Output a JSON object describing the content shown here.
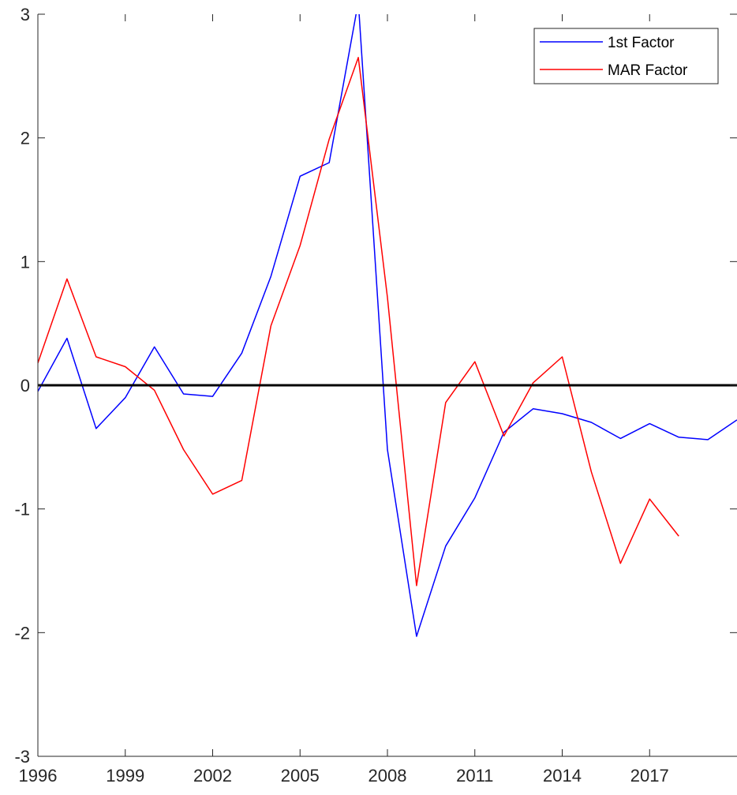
{
  "chart_data": {
    "type": "line",
    "title": "",
    "xlabel": "",
    "ylabel": "",
    "xlim": [
      1996,
      2020
    ],
    "ylim": [
      -3,
      3
    ],
    "xticks": [
      "1996",
      "1999",
      "2002",
      "2005",
      "2008",
      "2011",
      "2014",
      "2017"
    ],
    "yticks": [
      "-3",
      "-2",
      "-1",
      "0",
      "1",
      "2",
      "3"
    ],
    "zero_line": true,
    "grid": false,
    "legend_position": "top-right",
    "series": [
      {
        "name": "1st Factor",
        "color": "#0000ff",
        "x": [
          1996,
          1997,
          1998,
          1999,
          2000,
          2001,
          2002,
          2003,
          2004,
          2005,
          2006,
          2007,
          2008,
          2009,
          2010,
          2011,
          2012,
          2013,
          2014,
          2015,
          2016,
          2017,
          2018,
          2019,
          2020
        ],
        "values": [
          -0.05,
          0.38,
          -0.35,
          -0.1,
          0.31,
          -0.07,
          -0.09,
          0.26,
          0.88,
          1.69,
          1.8,
          3.1,
          -0.52,
          -2.03,
          -1.3,
          -0.91,
          -0.38,
          -0.19,
          -0.23,
          -0.3,
          -0.43,
          -0.31,
          -0.42,
          -0.44,
          -0.28
        ]
      },
      {
        "name": "MAR Factor",
        "color": "#ff0000",
        "x": [
          1996,
          1997,
          1998,
          1999,
          2000,
          2001,
          2002,
          2003,
          2004,
          2005,
          2006,
          2007,
          2008,
          2009,
          2010,
          2011,
          2012,
          2013,
          2014,
          2015,
          2016,
          2017,
          2018
        ],
        "values": [
          0.18,
          0.86,
          0.23,
          0.15,
          -0.04,
          -0.52,
          -0.88,
          -0.77,
          0.48,
          1.13,
          1.99,
          2.65,
          0.71,
          -1.62,
          -0.14,
          0.19,
          -0.41,
          0.02,
          0.23,
          -0.7,
          -1.44,
          -0.92,
          -1.22
        ]
      }
    ]
  }
}
